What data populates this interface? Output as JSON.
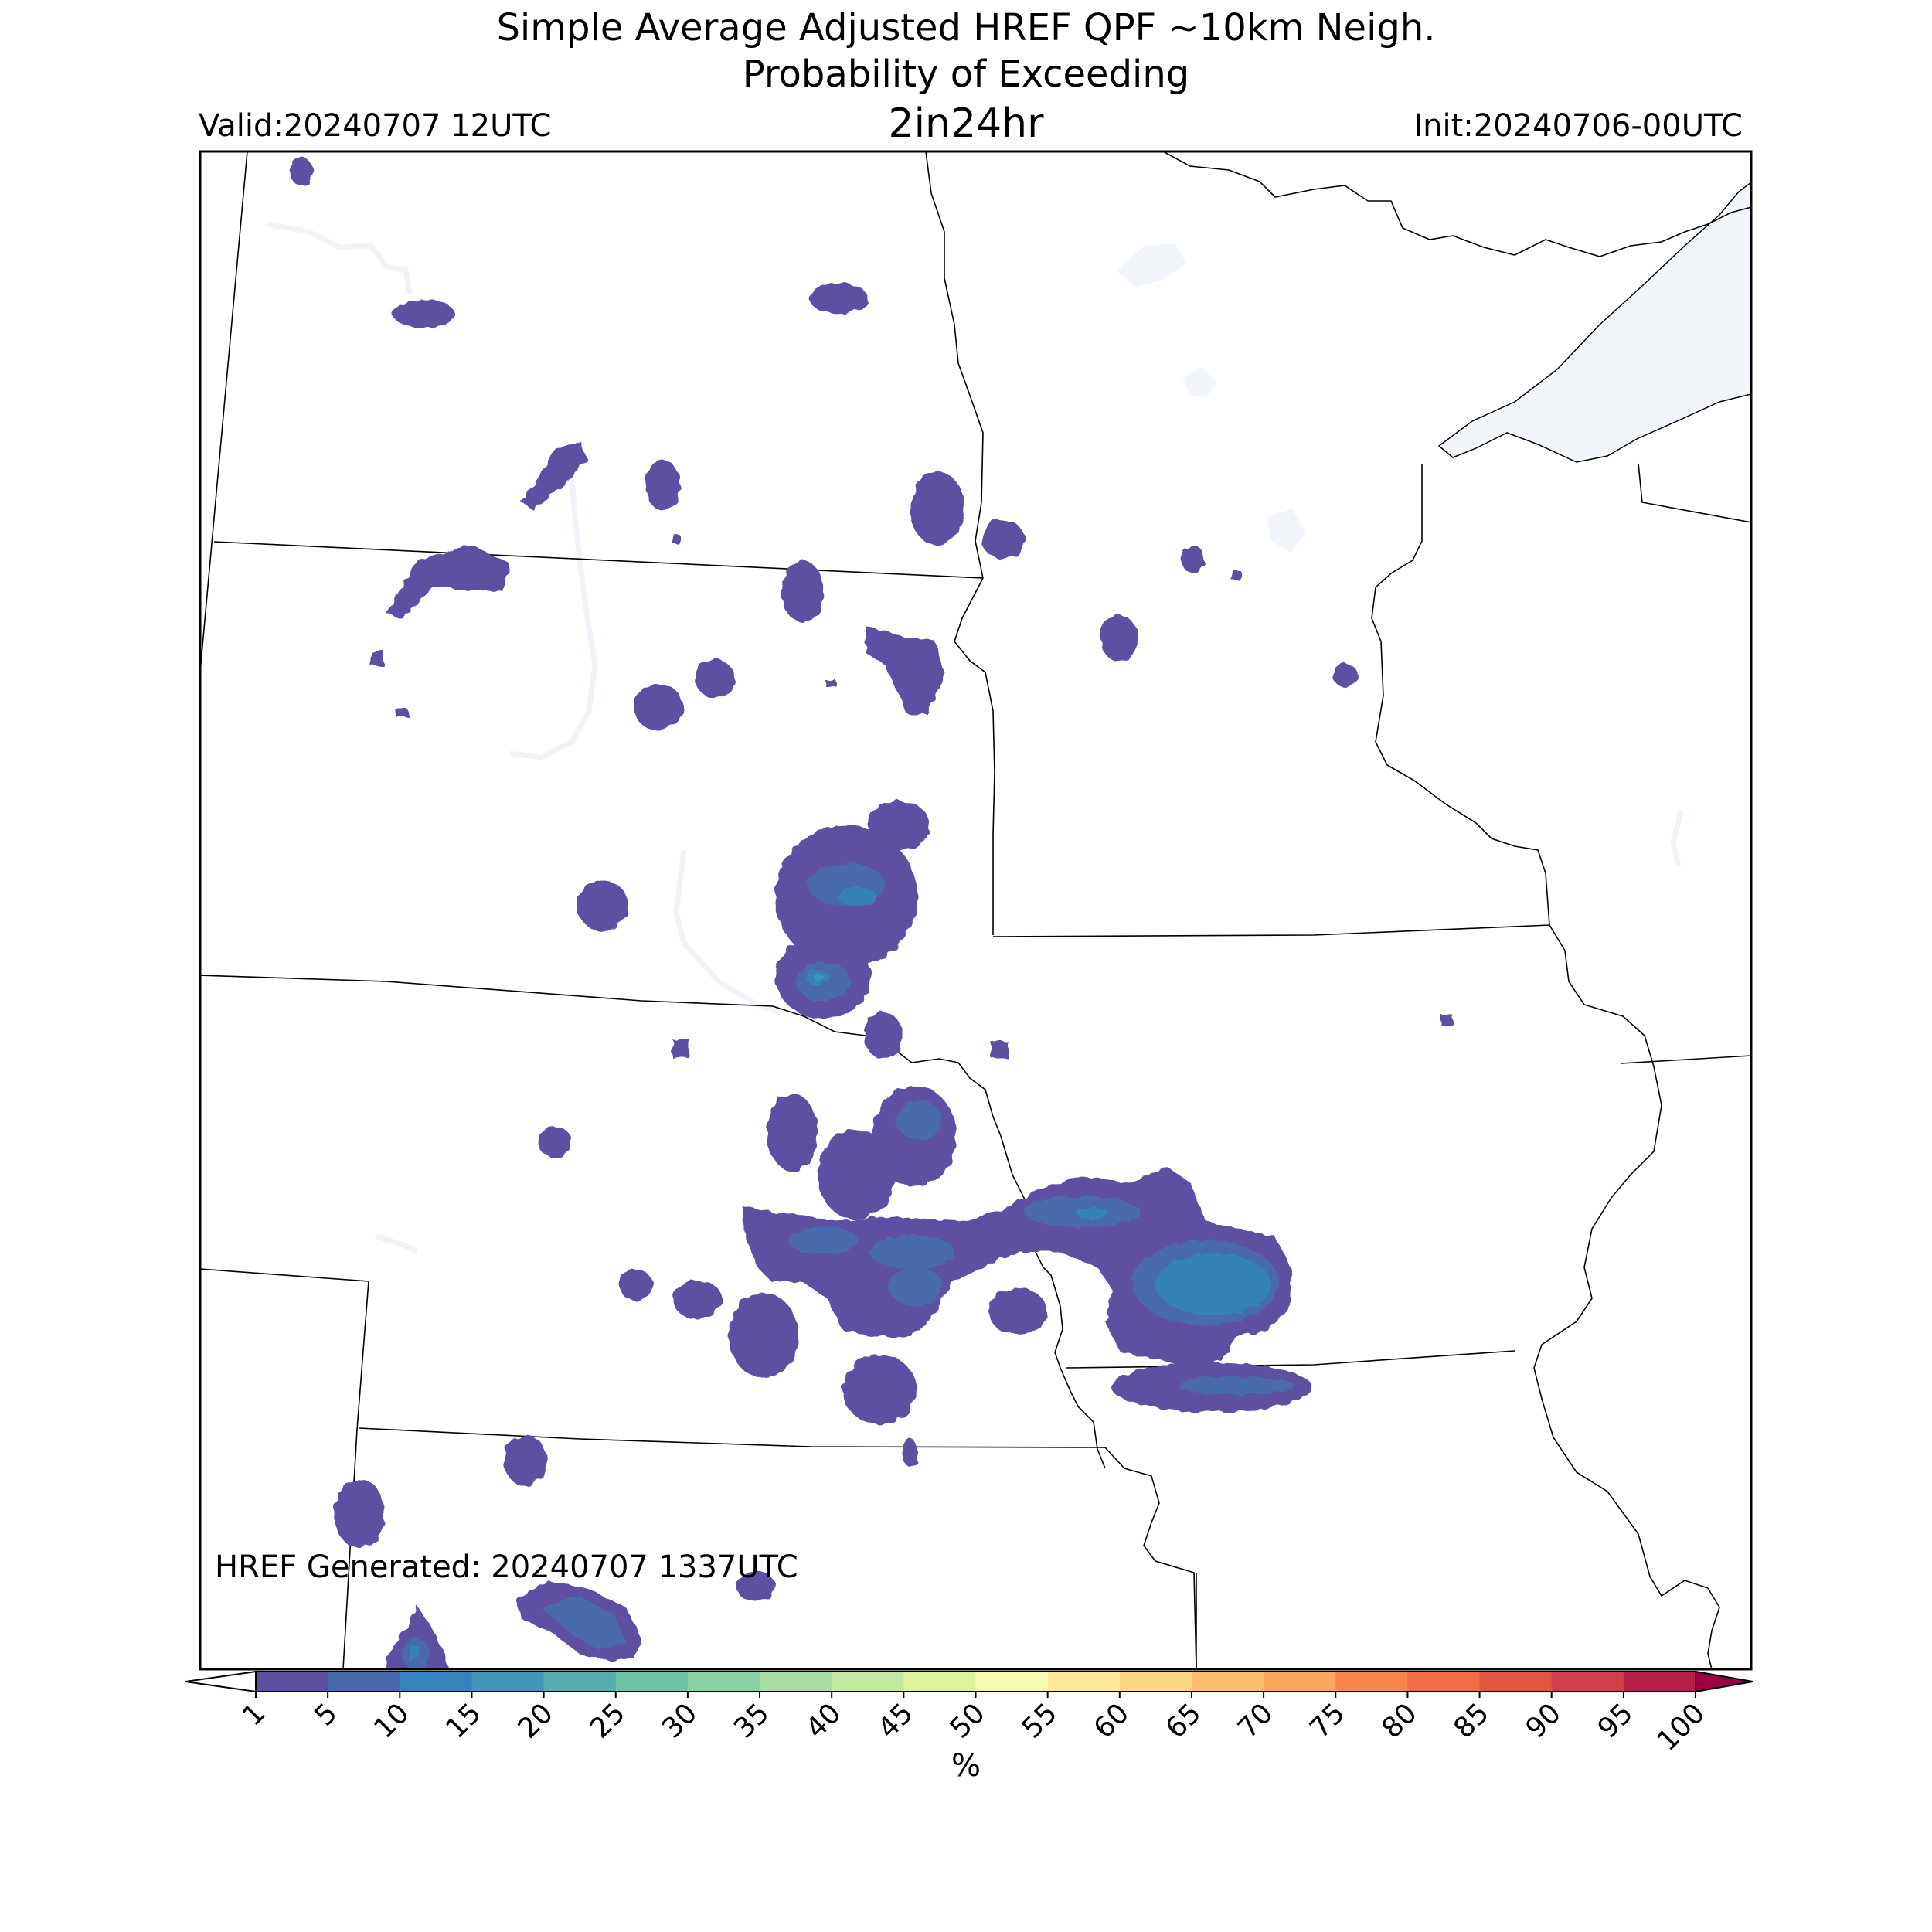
{
  "header": {
    "title_line1": "Simple Average Adjusted HREF QPF ~10km Neigh.",
    "title_line2": "Probability of Exceeding",
    "title_line3": "2in24hr",
    "valid": "Valid:20240707 12UTC",
    "init": "Init:20240706-00UTC"
  },
  "annotation": "HREF Generated: 20240707 1337UTC",
  "colorbar": {
    "unit_label": "%",
    "ticks": [
      "1",
      "5",
      "10",
      "15",
      "20",
      "25",
      "30",
      "35",
      "40",
      "45",
      "50",
      "55",
      "60",
      "65",
      "70",
      "75",
      "80",
      "85",
      "90",
      "95",
      "100"
    ],
    "colors": [
      "#5e4fa2",
      "#4a69ad",
      "#3682ba",
      "#3f96b7",
      "#54aead",
      "#6cc4a5",
      "#8ad0a4",
      "#a8dca2",
      "#c4e89f",
      "#def29a",
      "#f4fab0",
      "#fee999",
      "#fed583",
      "#fdbf6f",
      "#fca55d",
      "#f8874f",
      "#ef6c45",
      "#e0563f",
      "#cf3f4c",
      "#b51f48",
      "#9e0142"
    ],
    "extend": "both"
  },
  "legend_colors": {
    "outline": "#000000",
    "water": "#f2f5fa"
  }
}
